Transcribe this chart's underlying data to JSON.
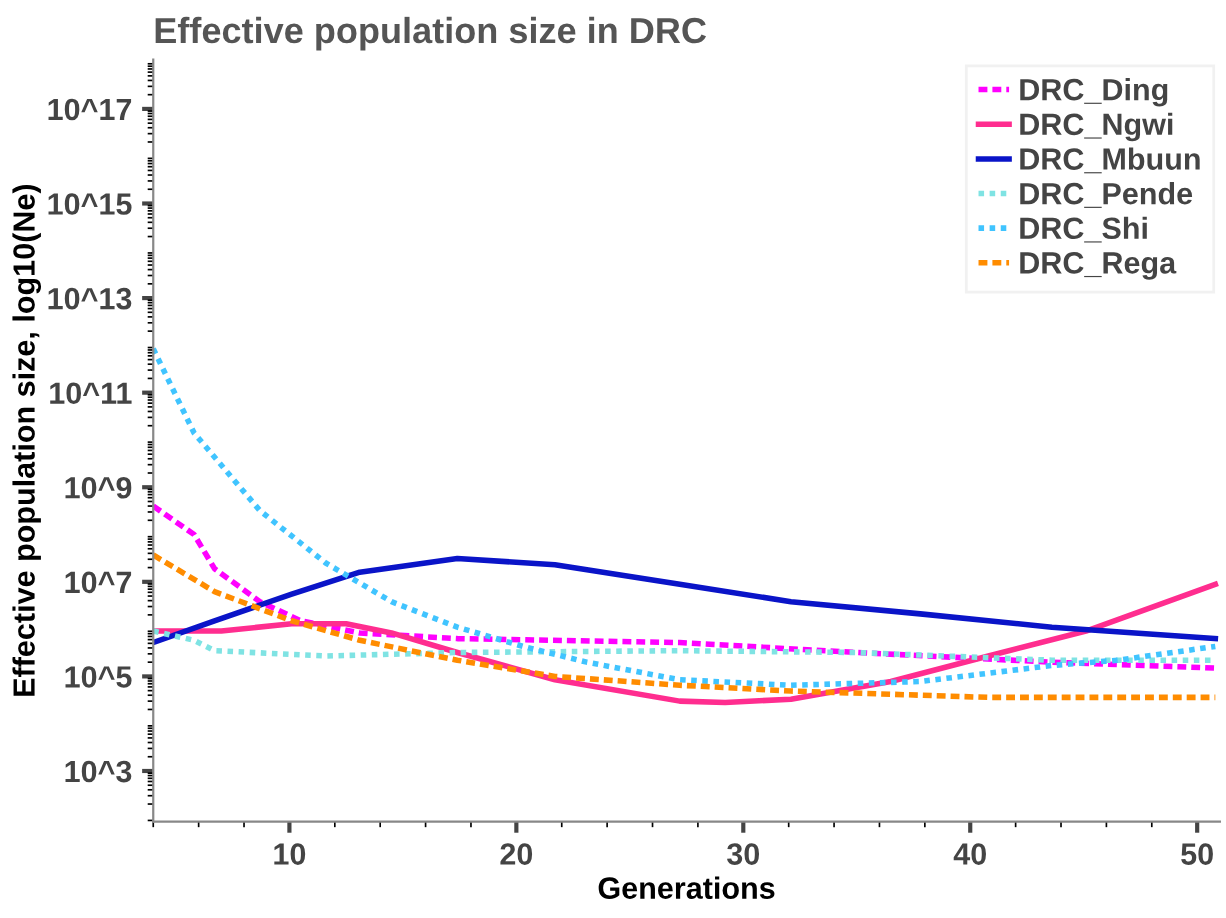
{
  "chart_data": {
    "type": "line",
    "title": "Effective population size in DRC",
    "xlabel": "Generations",
    "ylabel": "Effective population size, log10(Ne)",
    "log": "y",
    "xlim": [
      4,
      51
    ],
    "xticks": [
      10,
      20,
      30,
      40,
      50
    ],
    "ylim": [
      85,
      1.1e+18
    ],
    "yticks": [
      {
        "value": 1000.0,
        "label": "10^3"
      },
      {
        "value": 100000.0,
        "label": "10^5"
      },
      {
        "value": 10000000.0,
        "label": "10^7"
      },
      {
        "value": 1000000000.0,
        "label": "10^9"
      },
      {
        "value": 100000000000.0,
        "label": "10^11"
      },
      {
        "value": 10000000000000.0,
        "label": "10^13"
      },
      {
        "value": 1000000000000000.0,
        "label": "10^15"
      },
      {
        "value": 1e+17,
        "label": "10^17"
      }
    ],
    "grid": false,
    "legend": "top right",
    "marker": "none",
    "series": [
      {
        "name": "DRC_Ding",
        "color": "#ff00ff",
        "line_style": "dashed",
        "x": [
          4,
          5.8,
          6.7,
          8.7,
          10.5,
          13.1,
          17.4,
          27.2,
          35.0,
          43.6,
          50.8
        ],
        "values": [
          400000000.0,
          100000000.0,
          19000000.0,
          3800000.0,
          1500000.0,
          830000.0,
          630000.0,
          520000.0,
          320000.0,
          200000.0,
          150000.0
        ]
      },
      {
        "name": "DRC_Ngwi",
        "color": "#ff2d8f",
        "line_style": "solid",
        "x": [
          4,
          7.0,
          10.1,
          12.5,
          14.5,
          17.4,
          21.7,
          27.2,
          29.2,
          32.1,
          36.5,
          40.8,
          45.1,
          50.8
        ],
        "values": [
          910000.0,
          910000.0,
          1300000.0,
          1300000.0,
          830000.0,
          320000.0,
          85000.0,
          30000.0,
          28000.0,
          33000.0,
          78000.0,
          270000.0,
          910000.0,
          8900000.0
        ]
      },
      {
        "name": "DRC_Mbuun",
        "color": "#0a14c8",
        "line_style": "solid",
        "x": [
          4,
          6.7,
          10.1,
          13.1,
          17.4,
          21.7,
          27.2,
          32.1,
          37.8,
          43.6,
          50.8
        ],
        "values": [
          520000.0,
          1500000.0,
          5500000.0,
          16000000.0,
          31000000.0,
          23000000.0,
          8900000.0,
          3800000.0,
          2100000.0,
          1100000.0,
          630000.0
        ]
      },
      {
        "name": "DRC_Pende",
        "color": "#7fe3e3",
        "line_style": "dotted",
        "x": [
          4,
          5.8,
          6.7,
          11.6,
          17.4,
          27.2,
          35.0,
          43.6,
          50.8
        ],
        "values": [
          910000.0,
          580000.0,
          350000.0,
          270000.0,
          320000.0,
          350000.0,
          320000.0,
          220000.0,
          220000.0
        ]
      },
      {
        "name": "DRC_Shi",
        "color": "#40c4ff",
        "line_style": "dotted",
        "x": [
          4,
          5.8,
          8.7,
          11.6,
          14.5,
          17.4,
          20.3,
          23.1,
          27.2,
          32.1,
          37.8,
          43.6,
          46.5,
          50.8
        ],
        "values": [
          850000000000.0,
          14000000000.0,
          320000000.0,
          25000000.0,
          3800000.0,
          1100000.0,
          430000.0,
          200000.0,
          85000.0,
          65000.0,
          78000.0,
          170000.0,
          220000.0,
          430000.0
        ]
      },
      {
        "name": "DRC_Rega",
        "color": "#ff8c00",
        "line_style": "dashed",
        "x": [
          4,
          6.7,
          10.1,
          13.1,
          17.4,
          21.7,
          27.2,
          32.1,
          40.8,
          50.8
        ],
        "values": [
          37000000.0,
          6200000.0,
          1500000.0,
          580000.0,
          220000.0,
          100000.0,
          65000.0,
          49000.0,
          36000.0,
          36000.0
        ]
      }
    ]
  }
}
